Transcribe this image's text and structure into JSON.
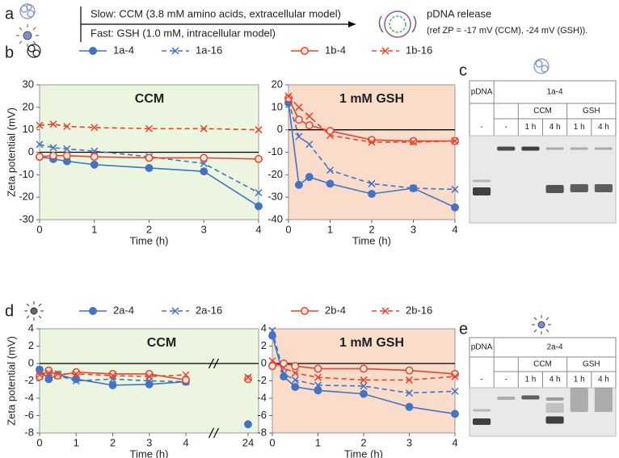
{
  "header": {
    "label": "a",
    "slow": "Slow: CCM (3.8 mM amino acids, extracellular model)",
    "fast": "Fast: GSH (1.0 mM, intracellular model)",
    "result": "pDNA release",
    "note": "(ref ZP = -17 mV (CCM), -24 mV (GSH))."
  },
  "panel_labels": [
    "b",
    "c",
    "d",
    "e"
  ],
  "chart_data": [
    {
      "type": "line",
      "title": "CCM",
      "xlabel": "Time (h)",
      "ylabel": "Zeta potential (mV)",
      "background": "#ebf5df",
      "x": [
        0,
        0.25,
        0.5,
        1,
        2,
        3,
        4
      ],
      "xlim": [
        0,
        4
      ],
      "xticks": [
        0,
        1,
        2,
        3,
        4
      ],
      "ylim": [
        -30,
        30
      ],
      "yticks": [
        -30,
        -20,
        -10,
        0,
        10,
        20,
        30
      ],
      "series": [
        {
          "name": "1a-4",
          "color": "#4472c4",
          "line_style": "solid",
          "marker": "filled-circle",
          "values": [
            -2,
            -3,
            -4,
            -5.5,
            -7,
            -8.5,
            -24
          ]
        },
        {
          "name": "1a-16",
          "color": "#4472c4",
          "line_style": "dashed",
          "marker": "cross",
          "values": [
            3.5,
            2,
            1.5,
            0.5,
            -2,
            -5,
            -18
          ]
        },
        {
          "name": "1b-4",
          "color": "#e8452c",
          "line_style": "solid",
          "marker": "open-circle",
          "values": [
            -2,
            -1.5,
            -1.5,
            -2,
            -2.5,
            -2.5,
            -3
          ]
        },
        {
          "name": "1b-16",
          "color": "#e8452c",
          "line_style": "dashed",
          "marker": "cross",
          "values": [
            12,
            12.5,
            11.5,
            11,
            10.5,
            10.5,
            10
          ]
        }
      ]
    },
    {
      "type": "line",
      "title": "1 mM GSH",
      "xlabel": "Time (h)",
      "background": "#f9dcc9",
      "x": [
        0,
        0.25,
        0.5,
        1,
        2,
        3,
        4
      ],
      "xlim": [
        0,
        4
      ],
      "xticks": [
        0,
        1,
        2,
        3,
        4
      ],
      "ylim": [
        -40,
        20
      ],
      "yticks": [
        -40,
        -30,
        -20,
        -10,
        0,
        10,
        20
      ],
      "series": [
        {
          "name": "1a-4",
          "color": "#4472c4",
          "line_style": "solid",
          "marker": "filled-circle",
          "values": [
            12,
            -24.5,
            -21,
            -24,
            -28.5,
            -26,
            -34.5
          ]
        },
        {
          "name": "1a-16",
          "color": "#4472c4",
          "line_style": "dashed",
          "marker": "cross",
          "values": [
            12.5,
            -3,
            -6.5,
            -18,
            -24,
            -26,
            -26.5
          ]
        },
        {
          "name": "1b-4",
          "color": "#e8452c",
          "line_style": "solid",
          "marker": "open-circle",
          "values": [
            14,
            4.5,
            2,
            -0.5,
            -4.5,
            -5,
            -5
          ]
        },
        {
          "name": "1b-16",
          "color": "#e8452c",
          "line_style": "dashed",
          "marker": "cross",
          "values": [
            15,
            10,
            6,
            -2.5,
            -5.5,
            -5.5,
            -5
          ]
        }
      ]
    },
    {
      "type": "line",
      "title": "CCM",
      "xlabel": "Time (h)",
      "ylabel": "Zeta potential (mV)",
      "background": "#ebf5df",
      "axis_break": true,
      "x": [
        0,
        0.25,
        0.5,
        1,
        2,
        3,
        4,
        24
      ],
      "xlim": [
        0,
        24
      ],
      "xticks": [
        0,
        1,
        2,
        3,
        4,
        24
      ],
      "ylim": [
        -8,
        4
      ],
      "yticks": [
        -8,
        -6,
        -4,
        -2,
        0,
        2,
        4
      ],
      "series": [
        {
          "name": "2a-4",
          "color": "#4472c4",
          "line_style": "solid",
          "marker": "filled-circle",
          "values": [
            -0.7,
            -1.8,
            -1.3,
            -1.8,
            -2.5,
            -2.4,
            -2.1,
            -7
          ]
        },
        {
          "name": "2a-16",
          "color": "#4472c4",
          "line_style": "dashed",
          "marker": "cross",
          "values": [
            -1.5,
            -1.3,
            -1.4,
            -2,
            -1.8,
            -2,
            -2.1,
            -1.6
          ]
        },
        {
          "name": "2b-4",
          "color": "#e8452c",
          "line_style": "solid",
          "marker": "open-circle",
          "values": [
            -1.5,
            -0.8,
            -1.4,
            -1,
            -1.2,
            -1.2,
            -1.9,
            -1.8
          ]
        },
        {
          "name": "2b-16",
          "color": "#e8452c",
          "line_style": "dashed",
          "marker": "cross",
          "values": [
            -1.3,
            -1.1,
            -1.2,
            -1.2,
            -1.4,
            -1.5,
            -1.3,
            -1.6
          ]
        }
      ]
    },
    {
      "type": "line",
      "title": "1 mM GSH",
      "xlabel": "Time (h)",
      "background": "#f9dcc9",
      "x": [
        0,
        0.25,
        0.5,
        1,
        2,
        3,
        4
      ],
      "xlim": [
        0,
        4
      ],
      "xticks": [
        0,
        1,
        2,
        3,
        4
      ],
      "ylim": [
        -8,
        4
      ],
      "yticks": [
        -8,
        -6,
        -4,
        -2,
        0,
        2,
        4
      ],
      "series": [
        {
          "name": "2a-4",
          "color": "#4472c4",
          "line_style": "solid",
          "marker": "filled-circle",
          "values": [
            3.2,
            -1.5,
            -2.7,
            -3.1,
            -3.5,
            -5,
            -5.8
          ]
        },
        {
          "name": "2a-16",
          "color": "#4472c4",
          "line_style": "dashed",
          "marker": "cross",
          "values": [
            3.8,
            -1.2,
            -1.9,
            -2.5,
            -2.6,
            -3.4,
            -3.2
          ]
        },
        {
          "name": "2b-4",
          "color": "#e8452c",
          "line_style": "solid",
          "marker": "open-circle",
          "values": [
            -0.3,
            0,
            -0.3,
            -0.6,
            -0.6,
            -0.8,
            -1.2
          ]
        },
        {
          "name": "2b-16",
          "color": "#e8452c",
          "line_style": "dashed",
          "marker": "cross",
          "values": [
            0.3,
            -0.5,
            -1.1,
            -1.6,
            -1.9,
            -1.9,
            -1.5
          ]
        }
      ]
    }
  ],
  "gels": [
    {
      "reference": "pDNA",
      "sample": "1a-4",
      "conditions": [
        "CCM",
        "GSH"
      ],
      "lanes": [
        "-",
        "-",
        "1 h",
        "4 h",
        "1 h",
        "4 h"
      ]
    },
    {
      "reference": "pDNA",
      "sample": "2a-4",
      "conditions": [
        "CCM",
        "GSH"
      ],
      "lanes": [
        "-",
        "-",
        "1 h",
        "4 h",
        "1 h",
        "4 h"
      ]
    }
  ]
}
